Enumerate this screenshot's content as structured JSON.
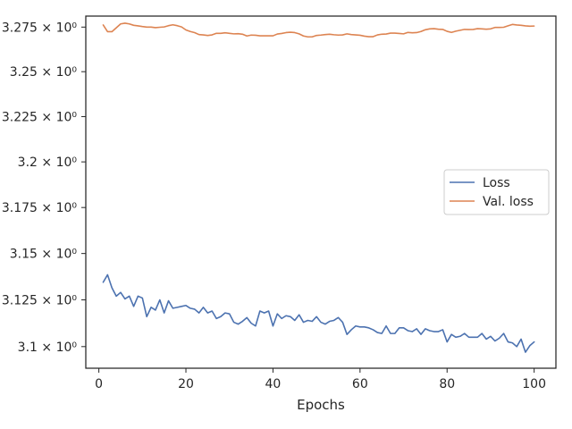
{
  "chart_data": {
    "type": "line",
    "title": "",
    "xlabel": "Epochs",
    "ylabel": "",
    "xlim": [
      -3,
      105
    ],
    "ylim": [
      3.0885,
      3.2812
    ],
    "x_ticks": [
      0,
      20,
      40,
      60,
      80,
      100
    ],
    "x_tick_labels": [
      "0",
      "20",
      "40",
      "60",
      "80",
      "100"
    ],
    "y_ticks": [
      3.1,
      3.125,
      3.15,
      3.175,
      3.2,
      3.225,
      3.25,
      3.275
    ],
    "y_tick_labels": [
      "3.1 × 10⁰",
      "3.125 × 10⁰",
      "3.15 × 10⁰",
      "3.175 × 10⁰",
      "3.2 × 10⁰",
      "3.225 × 10⁰",
      "3.25 × 10⁰",
      "3.275 × 10⁰"
    ],
    "y_scale": "log",
    "grid": false,
    "legend_position": "center-right",
    "series": [
      {
        "name": "Loss",
        "color": "#4c72b0",
        "x": [
          1,
          2,
          3,
          4,
          5,
          6,
          7,
          8,
          9,
          10,
          11,
          12,
          13,
          14,
          15,
          16,
          17,
          18,
          19,
          20,
          21,
          22,
          23,
          24,
          25,
          26,
          27,
          28,
          29,
          30,
          31,
          32,
          33,
          34,
          35,
          36,
          37,
          38,
          39,
          40,
          41,
          42,
          43,
          44,
          45,
          46,
          47,
          48,
          49,
          50,
          51,
          52,
          53,
          54,
          55,
          56,
          57,
          58,
          59,
          60,
          61,
          62,
          63,
          64,
          65,
          66,
          67,
          68,
          69,
          70,
          71,
          72,
          73,
          74,
          75,
          76,
          77,
          78,
          79,
          80,
          81,
          82,
          83,
          84,
          85,
          86,
          87,
          88,
          89,
          90,
          91,
          92,
          93,
          94,
          95,
          96,
          97,
          98,
          99,
          100
        ],
        "values": [
          3.1345,
          3.1385,
          3.1315,
          3.127,
          3.129,
          3.1255,
          3.127,
          3.1215,
          3.127,
          3.126,
          3.116,
          3.121,
          3.1195,
          3.125,
          3.118,
          3.1245,
          3.1205,
          3.121,
          3.1215,
          3.122,
          3.1205,
          3.12,
          3.118,
          3.121,
          3.118,
          3.119,
          3.115,
          3.116,
          3.118,
          3.1175,
          3.113,
          3.112,
          3.1135,
          3.1155,
          3.1125,
          3.111,
          3.119,
          3.118,
          3.119,
          3.111,
          3.1175,
          3.115,
          3.1165,
          3.116,
          3.114,
          3.117,
          3.113,
          3.114,
          3.1135,
          3.116,
          3.113,
          3.112,
          3.1135,
          3.114,
          3.1155,
          3.113,
          3.1065,
          3.109,
          3.111,
          3.1105,
          3.1105,
          3.11,
          3.109,
          3.1075,
          3.107,
          3.111,
          3.107,
          3.107,
          3.11,
          3.11,
          3.1085,
          3.108,
          3.1095,
          3.1065,
          3.1095,
          3.1085,
          3.108,
          3.108,
          3.109,
          3.1025,
          3.1065,
          3.105,
          3.1055,
          3.107,
          3.105,
          3.105,
          3.105,
          3.107,
          3.104,
          3.1055,
          3.103,
          3.1045,
          3.107,
          3.1025,
          3.102,
          3.1,
          3.104,
          3.097,
          3.1005,
          3.1025
        ]
      },
      {
        "name": "Val. loss",
        "color": "#dd8452",
        "x": [
          1,
          2,
          3,
          4,
          5,
          6,
          7,
          8,
          9,
          10,
          11,
          12,
          13,
          14,
          15,
          16,
          17,
          18,
          19,
          20,
          21,
          22,
          23,
          24,
          25,
          26,
          27,
          28,
          29,
          30,
          31,
          32,
          33,
          34,
          35,
          36,
          37,
          38,
          39,
          40,
          41,
          42,
          43,
          44,
          45,
          46,
          47,
          48,
          49,
          50,
          51,
          52,
          53,
          54,
          55,
          56,
          57,
          58,
          59,
          60,
          61,
          62,
          63,
          64,
          65,
          66,
          67,
          68,
          69,
          70,
          71,
          72,
          73,
          74,
          75,
          76,
          77,
          78,
          79,
          80,
          81,
          82,
          83,
          84,
          85,
          86,
          87,
          88,
          89,
          90,
          91,
          92,
          93,
          94,
          95,
          96,
          97,
          98,
          99,
          100
        ],
        "values": [
          3.2762,
          3.2724,
          3.2724,
          3.2746,
          3.2768,
          3.2772,
          3.2768,
          3.276,
          3.2757,
          3.2753,
          3.275,
          3.275,
          3.2747,
          3.2749,
          3.2751,
          3.2758,
          3.2763,
          3.2758,
          3.2751,
          3.2734,
          3.2725,
          3.2719,
          3.2708,
          3.2706,
          3.2703,
          3.2706,
          3.2715,
          3.2715,
          3.2718,
          3.2715,
          3.2712,
          3.2713,
          3.271,
          3.27,
          3.2705,
          3.2704,
          3.2701,
          3.2701,
          3.2701,
          3.2701,
          3.2711,
          3.2714,
          3.2719,
          3.2721,
          3.2719,
          3.2712,
          3.27,
          3.2695,
          3.2695,
          3.2703,
          3.2705,
          3.2708,
          3.271,
          3.2707,
          3.2705,
          3.2706,
          3.2712,
          3.2708,
          3.2706,
          3.2704,
          3.2699,
          3.2696,
          3.2696,
          3.2706,
          3.271,
          3.2711,
          3.2716,
          3.2716,
          3.2714,
          3.2712,
          3.272,
          3.2718,
          3.2719,
          3.2725,
          3.2735,
          3.274,
          3.2741,
          3.2738,
          3.2737,
          3.2726,
          3.272,
          3.2727,
          3.2732,
          3.2737,
          3.2736,
          3.2737,
          3.2741,
          3.274,
          3.2738,
          3.274,
          3.2748,
          3.2748,
          3.2749,
          3.2757,
          3.2765,
          3.2762,
          3.276,
          3.2757,
          3.2755,
          3.2756
        ]
      }
    ]
  }
}
